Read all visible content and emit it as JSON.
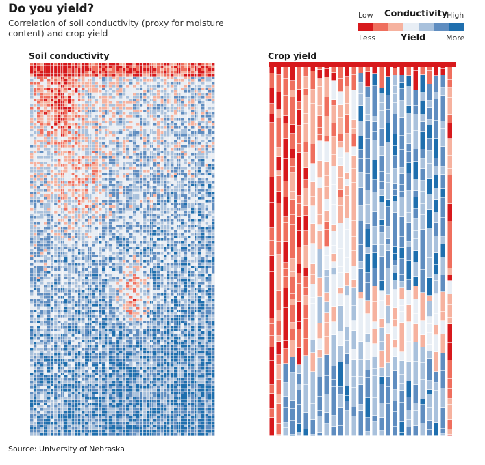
{
  "header": {
    "title": "Do you yield?",
    "subtitle": "Correlation of soil conductivity (proxy for moisture content) and crop yield"
  },
  "legend": {
    "conductivity_label": "Conductivity",
    "low_label": "Low",
    "high_label": "High",
    "yield_label": "Yield",
    "less_label": "Less",
    "more_label": "More",
    "colors": [
      "#d7191c",
      "#ef6f5e",
      "#f6b29f",
      "#e8eef5",
      "#a9c1dc",
      "#5f8dc0",
      "#1f6fae"
    ]
  },
  "panels": {
    "soil_label": "Soil conductivity",
    "yield_label": "Crop yield"
  },
  "source": "Source: University of Nebraska"
}
